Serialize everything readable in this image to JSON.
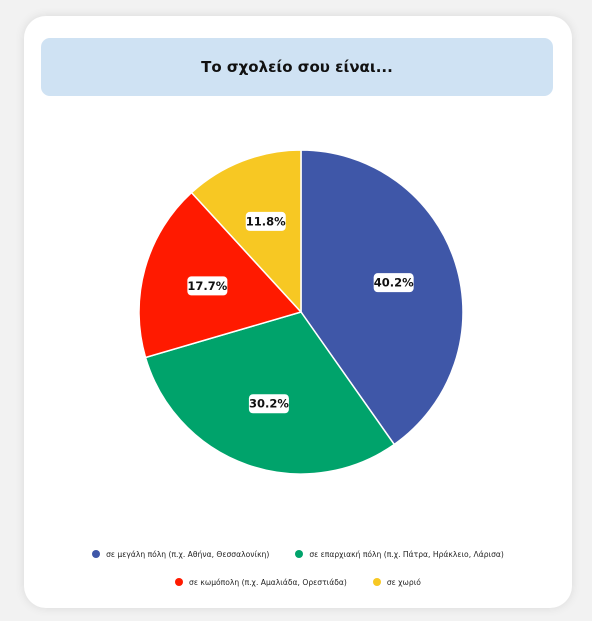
{
  "title": "Το σχολείο σου είναι...",
  "chart_data": {
    "type": "pie",
    "title": "Το σχολείο σου είναι...",
    "slices": [
      {
        "label": "σε μεγάλη πόλη (π.χ. Αθήνα, Θεσσαλονίκη)",
        "value": 40.2,
        "value_label": "40.2%",
        "color": "#3f57a8"
      },
      {
        "label": "σε επαρχιακή πόλη (π.χ. Πάτρα, Ηράκλειο, Λάρισα)",
        "value": 30.2,
        "value_label": "30.2%",
        "color": "#00a36b"
      },
      {
        "label": "σε κωμόπολη (π.χ. Αμαλιάδα, Ορεστιάδα)",
        "value": 17.7,
        "value_label": "17.7%",
        "color": "#ff1a00"
      },
      {
        "label": "σε χωριό",
        "value": 11.8,
        "value_label": "11.8%",
        "color": "#f7c823"
      }
    ],
    "legend_placement": "bottom"
  }
}
